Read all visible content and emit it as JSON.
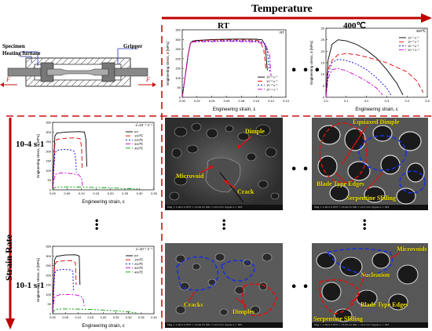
{
  "headers": {
    "temperature": "Temperature",
    "strain_rate": "Strain Rate",
    "rt": "RT",
    "t400": "400℃",
    "rate_low": "10-4 s-1",
    "rate_high": "10-1 s-1"
  },
  "schematic": {
    "specimen": "Specimen",
    "furnace": "Heating furnace",
    "gripper": "Gripper",
    "force_left": "F",
    "force_right": "F"
  },
  "ellipsis": "• • •",
  "sem": {
    "top": {
      "dimple": "Dimple",
      "microvoid": "Microvoid",
      "crack": "Crack"
    },
    "right_top": {
      "equiaxed": "Equiaxed Dimple",
      "blade": "Blade Type Edges",
      "serpentine": "Serpentine Sliding"
    },
    "bottom": {
      "cracks": "Cracks",
      "dimples": "Dimples"
    },
    "right_bottom": {
      "microvoids": "Microvoids",
      "nucleation": "Nucleation",
      "blade": "Blade Type Edges",
      "serpentine": "Serpentine Sliding"
    },
    "footer": "Mag = 1.00 K X   EHT = 15.00 kV   WD = 10.5 mm   Signal A = SE1"
  },
  "colors": {
    "arrow": "#c00000",
    "dash": "#cc1111",
    "sem_text": "#f2e400",
    "blue_annot": "#1a2fe0"
  },
  "chart_data": [
    {
      "type": "line",
      "panel": "top-middle",
      "title": "RT",
      "xlabel": "Engineering strain, ε",
      "ylabel": "Engineering stress, σ [MPa]",
      "xlim": [
        0.0,
        0.14
      ],
      "ylim": [
        0,
        350
      ],
      "xticks": [
        "0.00",
        "0.02",
        "0.04",
        "0.06",
        "0.08",
        "0.10",
        "0.12",
        "0.14"
      ],
      "yticks": [
        "0",
        "50",
        "100",
        "150",
        "200",
        "250",
        "300",
        "350"
      ],
      "legend_position": "bottom-right",
      "series": [
        {
          "name": "10⁻¹ s⁻¹",
          "color": "#000000",
          "dash": "solid",
          "x": [
            0,
            0.004,
            0.008,
            0.011,
            0.014,
            0.02,
            0.04,
            0.06,
            0.08,
            0.1,
            0.108,
            0.112,
            0.115
          ],
          "y": [
            0,
            110,
            220,
            280,
            292,
            295,
            299,
            301,
            302,
            301,
            298,
            270,
            140
          ]
        },
        {
          "name": "10⁻² s⁻¹",
          "color": "#e00000",
          "dash": "6,3",
          "x": [
            0,
            0.004,
            0.008,
            0.011,
            0.014,
            0.02,
            0.04,
            0.06,
            0.08,
            0.1,
            0.105,
            0.11,
            0.113
          ],
          "y": [
            0,
            110,
            220,
            280,
            290,
            293,
            297,
            298,
            298,
            296,
            290,
            250,
            150
          ]
        },
        {
          "name": "10⁻³ s⁻¹",
          "color": "#0000e0",
          "dash": "2,2",
          "x": [
            0,
            0.004,
            0.008,
            0.011,
            0.014,
            0.02,
            0.04,
            0.06,
            0.08,
            0.1,
            0.11,
            0.115,
            0.118
          ],
          "y": [
            0,
            110,
            220,
            280,
            288,
            290,
            292,
            293,
            293,
            291,
            285,
            240,
            130
          ]
        },
        {
          "name": "10⁻⁴ s⁻¹",
          "color": "#cc00cc",
          "dash": "6,2,2,2",
          "x": [
            0,
            0.004,
            0.008,
            0.011,
            0.014,
            0.02,
            0.04,
            0.06,
            0.08,
            0.1,
            0.112,
            0.118,
            0.12
          ],
          "y": [
            0,
            110,
            220,
            278,
            286,
            288,
            289,
            290,
            289,
            286,
            278,
            220,
            110
          ]
        }
      ]
    },
    {
      "type": "line",
      "panel": "top-right",
      "title": "400℃",
      "xlabel": "Engineering strain, ε",
      "ylabel": "Engineering stress, σ [MPa]",
      "xlim": [
        0.0,
        0.5
      ],
      "ylim": [
        0,
        30
      ],
      "xticks": [
        "0.0",
        "0.1",
        "0.2",
        "0.3",
        "0.4",
        "0.5"
      ],
      "yticks": [
        "0",
        "5",
        "10",
        "15",
        "20",
        "25",
        "30"
      ],
      "legend_position": "top-right",
      "series": [
        {
          "name": "10⁻¹ s⁻¹",
          "color": "#000000",
          "dash": "solid",
          "x": [
            0,
            0.01,
            0.03,
            0.06,
            0.1,
            0.15,
            0.2,
            0.25,
            0.3,
            0.35,
            0.38
          ],
          "y": [
            0,
            16,
            23,
            25,
            24.5,
            23,
            20.5,
            17,
            12,
            6,
            1
          ]
        },
        {
          "name": "10⁻² s⁻¹",
          "color": "#e00000",
          "dash": "6,3",
          "x": [
            0,
            0.01,
            0.03,
            0.06,
            0.1,
            0.15,
            0.2,
            0.3,
            0.4,
            0.45,
            0.48
          ],
          "y": [
            0,
            12,
            16,
            18.5,
            19,
            18.5,
            17.5,
            15,
            11,
            7,
            2
          ]
        },
        {
          "name": "10⁻³ s⁻¹",
          "color": "#0000e0",
          "dash": "2,2",
          "x": [
            0,
            0.01,
            0.03,
            0.06,
            0.1,
            0.15,
            0.2,
            0.25,
            0.3,
            0.32
          ],
          "y": [
            0,
            10,
            15,
            16.5,
            16,
            14.5,
            12,
            8.5,
            4,
            1
          ]
        },
        {
          "name": "10⁻⁴ s⁻¹",
          "color": "#cc00cc",
          "dash": "6,2,2,2",
          "x": [
            0,
            0.01,
            0.03,
            0.06,
            0.1,
            0.15,
            0.2,
            0.25,
            0.28
          ],
          "y": [
            0,
            8,
            12,
            12.5,
            11.5,
            9.5,
            7,
            4,
            1
          ]
        }
      ]
    },
    {
      "type": "line",
      "panel": "left-top",
      "title": "ε̇=10⁻⁴ s⁻¹",
      "xlabel": "Engineering strain, ε",
      "ylabel": "Engineering stress, σ [MPa]",
      "xlim": [
        0.0,
        0.35
      ],
      "ylim": [
        0,
        350
      ],
      "xticks": [
        "0.00",
        "0.05",
        "0.10",
        "0.15",
        "0.20",
        "0.25",
        "0.30",
        "0.35"
      ],
      "yticks": [
        "0",
        "50",
        "100",
        "150",
        "200",
        "250",
        "300",
        "350"
      ],
      "legend_position": "top-right",
      "series": [
        {
          "name": "RT",
          "color": "#000000",
          "dash": "solid",
          "x": [
            0,
            0.004,
            0.008,
            0.015,
            0.05,
            0.09,
            0.11,
            0.115,
            0.118
          ],
          "y": [
            0,
            150,
            280,
            295,
            300,
            302,
            300,
            260,
            120
          ]
        },
        {
          "name": "100℃",
          "color": "#e00000",
          "dash": "6,3",
          "x": [
            0,
            0.004,
            0.008,
            0.015,
            0.05,
            0.08,
            0.095,
            0.1,
            0.102
          ],
          "y": [
            0,
            130,
            240,
            262,
            268,
            270,
            265,
            220,
            110
          ]
        },
        {
          "name": "200℃",
          "color": "#0000e0",
          "dash": "2,2",
          "x": [
            0,
            0.004,
            0.008,
            0.015,
            0.04,
            0.06,
            0.075,
            0.08,
            0.082
          ],
          "y": [
            0,
            110,
            190,
            205,
            210,
            208,
            200,
            160,
            90
          ]
        },
        {
          "name": "300℃",
          "color": "#cc00cc",
          "dash": "6,2,2,2",
          "x": [
            0,
            0.004,
            0.01,
            0.03,
            0.06,
            0.09,
            0.1,
            0.103
          ],
          "y": [
            0,
            50,
            80,
            88,
            85,
            78,
            60,
            20
          ]
        },
        {
          "name": "400℃",
          "color": "#009900",
          "dash": "6,2,2,2,2,2",
          "x": [
            0,
            0.004,
            0.02,
            0.05,
            0.1,
            0.15,
            0.2,
            0.25,
            0.3
          ],
          "y": [
            0,
            10,
            14,
            15,
            14,
            12,
            10,
            7,
            4
          ]
        }
      ]
    },
    {
      "type": "line",
      "panel": "left-bottom",
      "title": "ε̇=10⁻¹ s⁻¹",
      "xlabel": "Engineering strain, ε",
      "ylabel": "Engineering stress, σ [MPa]",
      "xlim": [
        0.0,
        0.4
      ],
      "ylim": [
        0,
        350
      ],
      "xticks": [
        "0.00",
        "0.05",
        "0.10",
        "0.15",
        "0.20",
        "0.25",
        "0.30",
        "0.35",
        "0.40"
      ],
      "yticks": [
        "0",
        "50",
        "100",
        "150",
        "200",
        "250",
        "300",
        "350"
      ],
      "legend_position": "top-right",
      "series": [
        {
          "name": "RT",
          "color": "#000000",
          "dash": "solid",
          "x": [
            0,
            0.004,
            0.008,
            0.015,
            0.05,
            0.09,
            0.105,
            0.108
          ],
          "y": [
            0,
            150,
            280,
            298,
            305,
            306,
            300,
            150
          ]
        },
        {
          "name": "100℃",
          "color": "#e00000",
          "dash": "6,3",
          "x": [
            0,
            0.004,
            0.008,
            0.015,
            0.05,
            0.08,
            0.09,
            0.093
          ],
          "y": [
            0,
            130,
            250,
            270,
            276,
            275,
            265,
            150
          ]
        },
        {
          "name": "200℃",
          "color": "#0000e0",
          "dash": "2,2",
          "x": [
            0,
            0.004,
            0.008,
            0.015,
            0.04,
            0.07,
            0.08,
            0.082
          ],
          "y": [
            0,
            110,
            210,
            225,
            230,
            228,
            220,
            120
          ]
        },
        {
          "name": "300℃",
          "color": "#cc00cc",
          "dash": "6,2,2,2",
          "x": [
            0,
            0.004,
            0.01,
            0.03,
            0.06,
            0.09,
            0.11,
            0.12,
            0.125
          ],
          "y": [
            0,
            60,
            90,
            100,
            100,
            98,
            92,
            80,
            40
          ]
        },
        {
          "name": "400℃",
          "color": "#009900",
          "dash": "6,2,2,2,2,2",
          "x": [
            0,
            0.004,
            0.02,
            0.05,
            0.1,
            0.15,
            0.2,
            0.25,
            0.3,
            0.33
          ],
          "y": [
            0,
            15,
            24,
            25,
            24,
            22,
            19,
            15,
            10,
            5
          ]
        }
      ]
    }
  ]
}
